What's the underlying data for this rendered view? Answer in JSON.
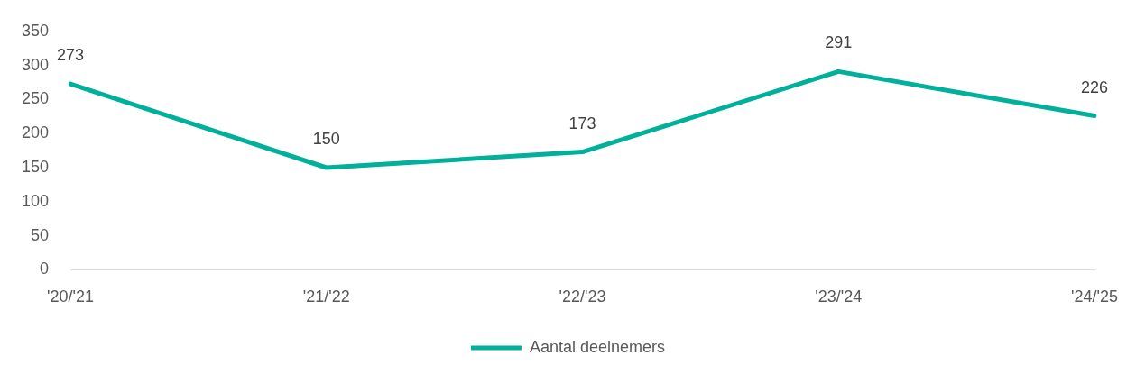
{
  "chart_data": {
    "type": "line",
    "categories": [
      "'20/'21",
      "'21/'22",
      "'22/'23",
      "'23/'24",
      "'24/'25"
    ],
    "series": [
      {
        "name": "Aantal deelnemers",
        "color": "#00b09b",
        "values": [
          273,
          150,
          173,
          291,
          226
        ]
      }
    ],
    "ylim": [
      0,
      350
    ],
    "yticks": [
      0,
      50,
      100,
      150,
      200,
      250,
      300,
      350
    ],
    "data_labels": true,
    "legend": "bottom",
    "grid": false,
    "marker": "none",
    "line_style": "solid"
  }
}
